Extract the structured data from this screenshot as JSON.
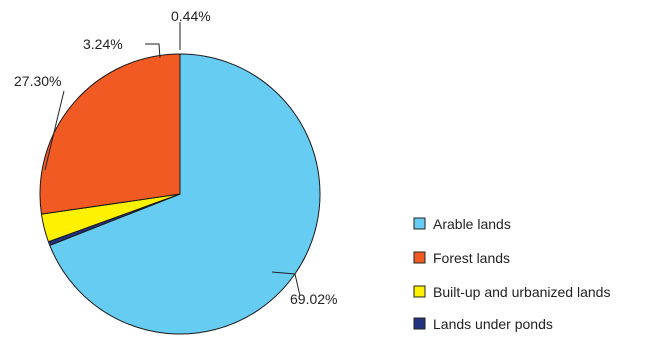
{
  "chart_data": {
    "type": "pie",
    "start_angle": "12 o'clock",
    "direction": "clockwise",
    "slices": [
      {
        "name": "Arable lands",
        "value": 69.02,
        "label": "69.02%",
        "color": "#66ccf2"
      },
      {
        "name": "Lands under ponds",
        "value": 0.44,
        "label": "0.44%",
        "color": "#22327f"
      },
      {
        "name": "Built-up and urbanized lands",
        "value": 3.24,
        "label": "3.24%",
        "color": "#fff200"
      },
      {
        "name": "Forest lands",
        "value": 27.3,
        "label": "27.30%",
        "color": "#f15a22"
      }
    ],
    "legend": {
      "placement": "bottom-right",
      "items": [
        {
          "label": "Arable lands",
          "color": "#66ccf2"
        },
        {
          "label": "Forest lands",
          "color": "#f15a22"
        },
        {
          "label": "Built-up and urbanized lands",
          "color": "#fff200"
        },
        {
          "label": "Lands under ponds",
          "color": "#22327f"
        }
      ]
    }
  }
}
